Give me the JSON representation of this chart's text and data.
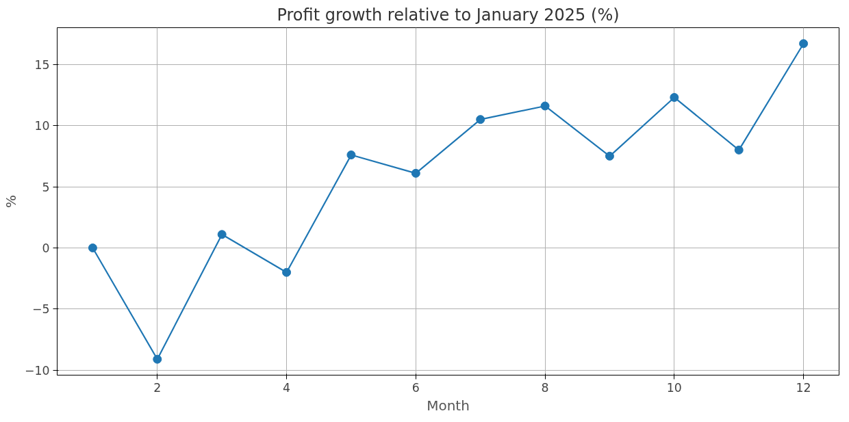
{
  "chart_data": {
    "type": "line",
    "title": "Profit growth relative to January 2025 (%)",
    "xlabel": "Month",
    "ylabel": "%",
    "x": [
      1,
      2,
      3,
      4,
      5,
      6,
      7,
      8,
      9,
      10,
      11,
      12
    ],
    "series": [
      {
        "color": "#1f77b4",
        "values": [
          0,
          -9.1,
          1.1,
          -2.0,
          7.6,
          6.1,
          10.5,
          11.6,
          7.5,
          12.3,
          8.0,
          16.7
        ]
      }
    ],
    "xlim": [
      0.45,
      12.55
    ],
    "ylim": [
      -10.4,
      18.0
    ],
    "xticks": [
      2,
      4,
      6,
      8,
      10,
      12
    ],
    "yticks": [
      -10,
      -5,
      0,
      5,
      10,
      15
    ],
    "grid": true,
    "marker": "circle",
    "line_style": "solid"
  }
}
